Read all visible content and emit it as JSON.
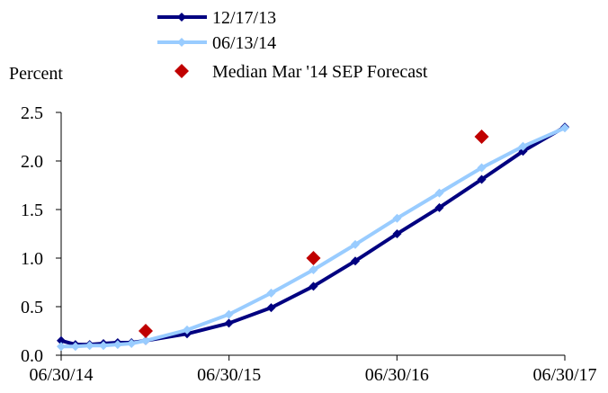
{
  "chart_data": {
    "type": "line",
    "ylabel": "Percent",
    "ylim": [
      0,
      2.5
    ],
    "yticks": [
      "0.0",
      "0.5",
      "1.0",
      "1.5",
      "2.0",
      "2.5"
    ],
    "xlim": [
      "2014-06-30",
      "2017-06-30"
    ],
    "xticks": [
      "06/30/14",
      "06/30/15",
      "06/30/16",
      "06/30/17"
    ],
    "grid": false,
    "legend_position": "top",
    "series": [
      {
        "name": "12/17/13",
        "color": "#000080",
        "marker": "diamond",
        "x": [
          "2014-06-30",
          "2014-07-31",
          "2014-08-31",
          "2014-09-30",
          "2014-10-31",
          "2014-11-30",
          "2014-12-31",
          "2015-03-31",
          "2015-06-30",
          "2015-09-30",
          "2015-12-31",
          "2016-03-31",
          "2016-06-30",
          "2016-09-30",
          "2016-12-31",
          "2017-03-31",
          "2017-06-30"
        ],
        "y": [
          0.15,
          0.11,
          0.11,
          0.12,
          0.13,
          0.13,
          0.15,
          0.22,
          0.33,
          0.49,
          0.71,
          0.97,
          1.25,
          1.52,
          1.81,
          2.1,
          2.35
        ]
      },
      {
        "name": "06/13/14",
        "color": "#99CCFF",
        "marker": "diamond",
        "x": [
          "2014-06-30",
          "2014-07-31",
          "2014-08-31",
          "2014-09-30",
          "2014-10-31",
          "2014-11-30",
          "2014-12-31",
          "2015-03-31",
          "2015-06-30",
          "2015-09-30",
          "2015-12-31",
          "2016-03-31",
          "2016-06-30",
          "2016-09-30",
          "2016-12-31",
          "2017-03-31",
          "2017-06-30"
        ],
        "y": [
          0.09,
          0.09,
          0.1,
          0.1,
          0.11,
          0.12,
          0.15,
          0.26,
          0.42,
          0.64,
          0.88,
          1.14,
          1.41,
          1.67,
          1.93,
          2.15,
          2.34
        ]
      },
      {
        "name": "Median Mar '14 SEP Forecast",
        "color": "#C00000",
        "marker": "diamond",
        "line": false,
        "x": [
          "2014-12-31",
          "2015-12-31",
          "2016-12-31"
        ],
        "y": [
          0.25,
          1.0,
          2.25
        ]
      }
    ]
  }
}
